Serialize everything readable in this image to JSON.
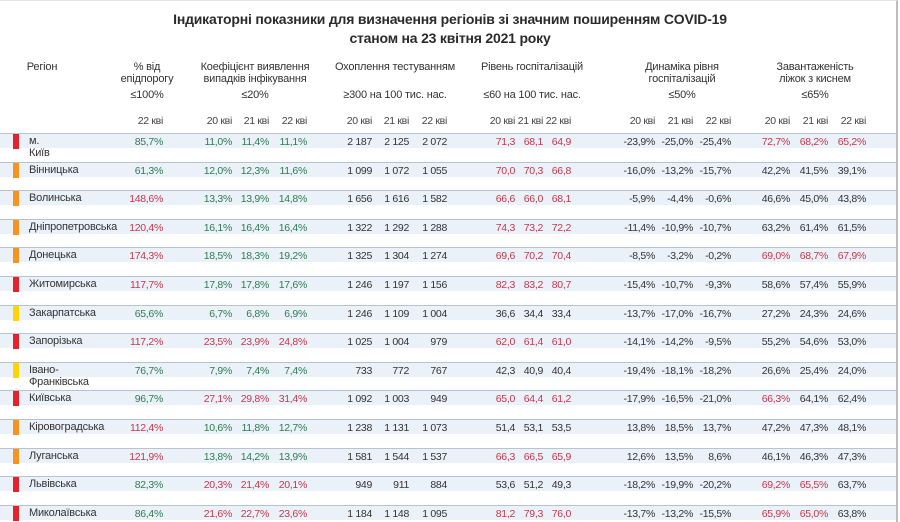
{
  "title_line1": "Індикаторні показники для визначення регіонів зі значним поширенням COVID-19",
  "title_line2": "станом на 23 квітня 2021 року",
  "headers": {
    "region": "Регіон",
    "epi": {
      "l1": "% від",
      "l2": "епідпорогу",
      "threshold": "≤100%"
    },
    "coef": {
      "l1": "Коефіцієнт виявлення",
      "l2": "випадків інфікування",
      "threshold": "≤20%"
    },
    "test": {
      "l1": "Охоплення тестуванням",
      "threshold": "≥300 на 100 тис. нас."
    },
    "hosp": {
      "l1": "Рівень госпіталізацій",
      "threshold": "≤60 на 100 тис. нас."
    },
    "dyn": {
      "l1": "Динаміка рівня",
      "l2": "госпіталізацій",
      "threshold": "≤50%"
    },
    "beds": {
      "l1": "Завантаженість",
      "l2": "ліжок з киснем",
      "threshold": "≤65%"
    },
    "dates": [
      "20 кві",
      "21 кві",
      "22 кві"
    ]
  },
  "level_colors": {
    "red": "#e8202a",
    "orange": "#f7931e",
    "yellow": "#ffd400"
  },
  "rows": [
    {
      "name": "м. Київ",
      "level": "red",
      "epi": [
        "85,7%",
        "g"
      ],
      "coef": [
        [
          "11,0%",
          "g"
        ],
        [
          "11,4%",
          "g"
        ],
        [
          "11,1%",
          "g"
        ]
      ],
      "test": [
        "2 187",
        "2 125",
        "2 072"
      ],
      "hosp": [
        [
          "71,3",
          "r"
        ],
        [
          "68,1",
          "r"
        ],
        [
          "64,9",
          "r"
        ]
      ],
      "dyn": [
        "-23,9%",
        "-25,0%",
        "-25,4%"
      ],
      "beds": [
        [
          "72,7%",
          "r"
        ],
        [
          "68,2%",
          "r"
        ],
        [
          "65,2%",
          "r"
        ]
      ]
    },
    {
      "name": "Вінницька",
      "level": "orange",
      "epi": [
        "61,3%",
        "g"
      ],
      "coef": [
        [
          "12,0%",
          "g"
        ],
        [
          "12,3%",
          "g"
        ],
        [
          "11,6%",
          "g"
        ]
      ],
      "test": [
        "1 099",
        "1 072",
        "1 055"
      ],
      "hosp": [
        [
          "70,0",
          "r"
        ],
        [
          "70,3",
          "r"
        ],
        [
          "66,8",
          "r"
        ]
      ],
      "dyn": [
        "-16,0%",
        "-13,2%",
        "-15,7%"
      ],
      "beds": [
        [
          "42,2%",
          "n"
        ],
        [
          "41,5%",
          "n"
        ],
        [
          "39,1%",
          "n"
        ]
      ]
    },
    {
      "name": "Волинська",
      "level": "orange",
      "epi": [
        "148,6%",
        "r"
      ],
      "coef": [
        [
          "13,3%",
          "g"
        ],
        [
          "13,9%",
          "g"
        ],
        [
          "14,8%",
          "g"
        ]
      ],
      "test": [
        "1 656",
        "1 616",
        "1 582"
      ],
      "hosp": [
        [
          "66,6",
          "r"
        ],
        [
          "66,0",
          "r"
        ],
        [
          "68,1",
          "r"
        ]
      ],
      "dyn": [
        "-5,9%",
        "-4,4%",
        "-0,6%"
      ],
      "beds": [
        [
          "46,6%",
          "n"
        ],
        [
          "45,0%",
          "n"
        ],
        [
          "43,8%",
          "n"
        ]
      ]
    },
    {
      "name": "Дніпропетровська",
      "level": "orange",
      "epi": [
        "120,4%",
        "r"
      ],
      "coef": [
        [
          "16,1%",
          "g"
        ],
        [
          "16,4%",
          "g"
        ],
        [
          "16,4%",
          "g"
        ]
      ],
      "test": [
        "1 322",
        "1 292",
        "1 288"
      ],
      "hosp": [
        [
          "74,3",
          "r"
        ],
        [
          "73,2",
          "r"
        ],
        [
          "72,2",
          "r"
        ]
      ],
      "dyn": [
        "-11,4%",
        "-10,9%",
        "-10,7%"
      ],
      "beds": [
        [
          "63,2%",
          "n"
        ],
        [
          "61,4%",
          "n"
        ],
        [
          "61,5%",
          "n"
        ]
      ]
    },
    {
      "name": "Донецька",
      "level": "orange",
      "epi": [
        "174,3%",
        "r"
      ],
      "coef": [
        [
          "18,5%",
          "g"
        ],
        [
          "18,3%",
          "g"
        ],
        [
          "19,2%",
          "g"
        ]
      ],
      "test": [
        "1 325",
        "1 304",
        "1 274"
      ],
      "hosp": [
        [
          "69,6",
          "r"
        ],
        [
          "70,2",
          "r"
        ],
        [
          "70,4",
          "r"
        ]
      ],
      "dyn": [
        "-8,5%",
        "-3,2%",
        "-0,2%"
      ],
      "beds": [
        [
          "69,0%",
          "r"
        ],
        [
          "68,7%",
          "r"
        ],
        [
          "67,9%",
          "r"
        ]
      ]
    },
    {
      "name": "Житомирська",
      "level": "red",
      "epi": [
        "117,7%",
        "r"
      ],
      "coef": [
        [
          "17,8%",
          "g"
        ],
        [
          "17,8%",
          "g"
        ],
        [
          "17,6%",
          "g"
        ]
      ],
      "test": [
        "1 246",
        "1 197",
        "1 156"
      ],
      "hosp": [
        [
          "82,3",
          "r"
        ],
        [
          "83,2",
          "r"
        ],
        [
          "80,7",
          "r"
        ]
      ],
      "dyn": [
        "-15,4%",
        "-10,7%",
        "-9,3%"
      ],
      "beds": [
        [
          "58,6%",
          "n"
        ],
        [
          "57,4%",
          "n"
        ],
        [
          "55,9%",
          "n"
        ]
      ]
    },
    {
      "name": "Закарпатська",
      "level": "yellow",
      "epi": [
        "65,6%",
        "g"
      ],
      "coef": [
        [
          "6,7%",
          "g"
        ],
        [
          "6,8%",
          "g"
        ],
        [
          "6,9%",
          "g"
        ]
      ],
      "test": [
        "1 246",
        "1 109",
        "1 004"
      ],
      "hosp": [
        [
          "36,6",
          "n"
        ],
        [
          "34,4",
          "n"
        ],
        [
          "33,4",
          "n"
        ]
      ],
      "dyn": [
        "-13,7%",
        "-17,0%",
        "-16,7%"
      ],
      "beds": [
        [
          "27,2%",
          "n"
        ],
        [
          "24,3%",
          "n"
        ],
        [
          "24,6%",
          "n"
        ]
      ]
    },
    {
      "name": "Запорізька",
      "level": "red",
      "epi": [
        "117,2%",
        "r"
      ],
      "coef": [
        [
          "23,5%",
          "r"
        ],
        [
          "23,9%",
          "r"
        ],
        [
          "24,8%",
          "r"
        ]
      ],
      "test": [
        "1 025",
        "1 004",
        "979"
      ],
      "hosp": [
        [
          "62,0",
          "r"
        ],
        [
          "61,4",
          "r"
        ],
        [
          "61,0",
          "r"
        ]
      ],
      "dyn": [
        "-14,1%",
        "-14,2%",
        "-9,5%"
      ],
      "beds": [
        [
          "55,2%",
          "n"
        ],
        [
          "54,6%",
          "n"
        ],
        [
          "53,0%",
          "n"
        ]
      ]
    },
    {
      "name": "Івано-Франківська",
      "level": "yellow",
      "epi": [
        "76,7%",
        "g"
      ],
      "coef": [
        [
          "7,9%",
          "g"
        ],
        [
          "7,4%",
          "g"
        ],
        [
          "7,4%",
          "g"
        ]
      ],
      "test": [
        "733",
        "772",
        "767"
      ],
      "hosp": [
        [
          "42,3",
          "n"
        ],
        [
          "40,9",
          "n"
        ],
        [
          "40,4",
          "n"
        ]
      ],
      "dyn": [
        "-19,4%",
        "-18,1%",
        "-18,2%"
      ],
      "beds": [
        [
          "26,6%",
          "n"
        ],
        [
          "25,4%",
          "n"
        ],
        [
          "24,0%",
          "n"
        ]
      ]
    },
    {
      "name": "Київська",
      "level": "red",
      "epi": [
        "96,7%",
        "g"
      ],
      "coef": [
        [
          "27,1%",
          "r"
        ],
        [
          "29,8%",
          "r"
        ],
        [
          "31,4%",
          "r"
        ]
      ],
      "test": [
        "1 092",
        "1 003",
        "949"
      ],
      "hosp": [
        [
          "65,0",
          "r"
        ],
        [
          "64,4",
          "r"
        ],
        [
          "61,2",
          "r"
        ]
      ],
      "dyn": [
        "-17,9%",
        "-16,5%",
        "-21,0%"
      ],
      "beds": [
        [
          "66,3%",
          "r"
        ],
        [
          "64,1%",
          "n"
        ],
        [
          "62,4%",
          "n"
        ]
      ]
    },
    {
      "name": "Кіровоградська",
      "level": "orange",
      "epi": [
        "112,4%",
        "r"
      ],
      "coef": [
        [
          "10,6%",
          "g"
        ],
        [
          "11,8%",
          "g"
        ],
        [
          "12,7%",
          "g"
        ]
      ],
      "test": [
        "1 238",
        "1 131",
        "1 073"
      ],
      "hosp": [
        [
          "51,4",
          "n"
        ],
        [
          "53,1",
          "n"
        ],
        [
          "53,5",
          "n"
        ]
      ],
      "dyn": [
        "13,8%",
        "18,5%",
        "13,7%"
      ],
      "beds": [
        [
          "47,2%",
          "n"
        ],
        [
          "47,3%",
          "n"
        ],
        [
          "48,1%",
          "n"
        ]
      ]
    },
    {
      "name": "Луганська",
      "level": "orange",
      "epi": [
        "121,9%",
        "r"
      ],
      "coef": [
        [
          "13,8%",
          "g"
        ],
        [
          "14,2%",
          "g"
        ],
        [
          "13,9%",
          "g"
        ]
      ],
      "test": [
        "1 581",
        "1 544",
        "1 537"
      ],
      "hosp": [
        [
          "66,3",
          "r"
        ],
        [
          "66,5",
          "r"
        ],
        [
          "65,9",
          "r"
        ]
      ],
      "dyn": [
        "12,6%",
        "13,5%",
        "8,6%"
      ],
      "beds": [
        [
          "46,1%",
          "n"
        ],
        [
          "46,3%",
          "n"
        ],
        [
          "47,3%",
          "n"
        ]
      ]
    },
    {
      "name": "Львівська",
      "level": "red",
      "epi": [
        "82,3%",
        "g"
      ],
      "coef": [
        [
          "20,3%",
          "r"
        ],
        [
          "21,4%",
          "r"
        ],
        [
          "20,1%",
          "r"
        ]
      ],
      "test": [
        "949",
        "911",
        "884"
      ],
      "hosp": [
        [
          "53,6",
          "n"
        ],
        [
          "51,2",
          "n"
        ],
        [
          "49,3",
          "n"
        ]
      ],
      "dyn": [
        "-18,2%",
        "-19,9%",
        "-20,2%"
      ],
      "beds": [
        [
          "69,2%",
          "r"
        ],
        [
          "65,5%",
          "r"
        ],
        [
          "63,7%",
          "n"
        ]
      ]
    },
    {
      "name": "Миколаївська",
      "level": "red",
      "epi": [
        "86,4%",
        "g"
      ],
      "coef": [
        [
          "21,6%",
          "r"
        ],
        [
          "22,7%",
          "r"
        ],
        [
          "23,6%",
          "r"
        ]
      ],
      "test": [
        "1 184",
        "1 148",
        "1 095"
      ],
      "hosp": [
        [
          "81,2",
          "r"
        ],
        [
          "79,3",
          "r"
        ],
        [
          "76,0",
          "r"
        ]
      ],
      "dyn": [
        "-13,7%",
        "-13,2%",
        "-15,5%"
      ],
      "beds": [
        [
          "65,9%",
          "r"
        ],
        [
          "65,0%",
          "r"
        ],
        [
          "63,8%",
          "n"
        ]
      ]
    }
  ]
}
